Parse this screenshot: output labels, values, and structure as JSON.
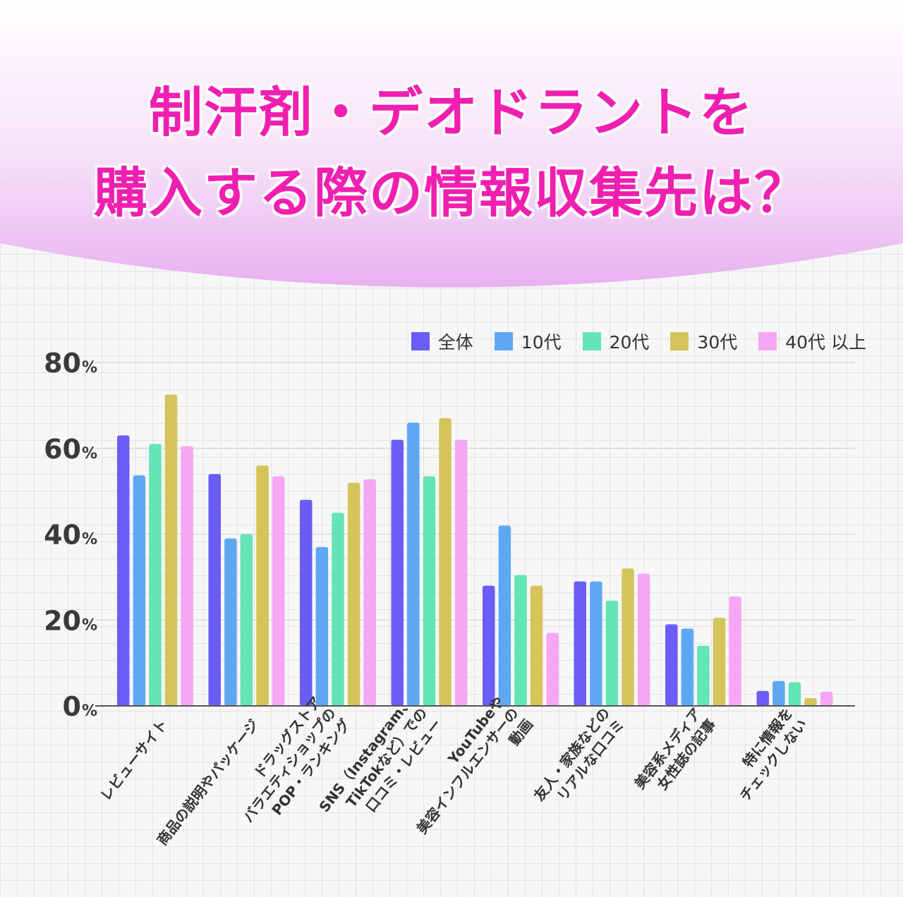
{
  "title": {
    "line1": "制汗剤・デオドラントを",
    "line2": "購入する際の情報収集先は？"
  },
  "colors": {
    "title": "#f01fb0",
    "header_gradient_top": "#ffffff",
    "header_gradient_bottom": "#e8b0f0",
    "axis": "#555555",
    "gridline": "#d9d9dc",
    "label_text": "#333333"
  },
  "chart_data": {
    "type": "bar",
    "ylim": [
      0,
      80
    ],
    "y_ticks": [
      {
        "value": 0,
        "label": "0",
        "unit": "%"
      },
      {
        "value": 20,
        "label": "20",
        "unit": "%"
      },
      {
        "value": 40,
        "label": "40",
        "unit": "%"
      },
      {
        "value": 60,
        "label": "60",
        "unit": "%"
      },
      {
        "value": 80,
        "label": "80",
        "unit": "%"
      }
    ],
    "grid": true,
    "legend_position": "top-right",
    "categories": [
      [
        "レビューサイト"
      ],
      [
        "商品の説明やパッケージ"
      ],
      [
        "ドラッグストア",
        "バラエティショップの",
        "POP・ランキング"
      ],
      [
        "SNS（Instagram、",
        "TikTokなど）での",
        "口コミ・レビュー"
      ],
      [
        "YouTubeや",
        "美容インフルエンサーの",
        "動画"
      ],
      [
        "友人・家族などの",
        "リアルな口コミ"
      ],
      [
        "美容系メディア",
        "女性誌の記事"
      ],
      [
        "特に情報を",
        "チェックしない"
      ]
    ],
    "series": [
      {
        "name": "全体",
        "color": "#6b5cf6",
        "values": [
          63,
          54,
          48,
          62,
          28,
          29,
          19,
          3.5
        ]
      },
      {
        "name": "10代",
        "color": "#5ea8f2",
        "values": [
          53.7,
          39,
          37,
          66,
          42,
          29,
          18,
          5.8
        ]
      },
      {
        "name": "20代",
        "color": "#63e5b5",
        "values": [
          61,
          40,
          45,
          53.5,
          30.5,
          24.5,
          14,
          5.5
        ]
      },
      {
        "name": "30代",
        "color": "#d4c45a",
        "values": [
          72.5,
          56,
          52,
          67,
          28,
          32,
          20.5,
          1.8
        ]
      },
      {
        "name": "40代 以上",
        "color": "#f5a6f5",
        "values": [
          60.5,
          53.5,
          52.8,
          62,
          17,
          30.8,
          25.5,
          3.3
        ]
      }
    ]
  }
}
